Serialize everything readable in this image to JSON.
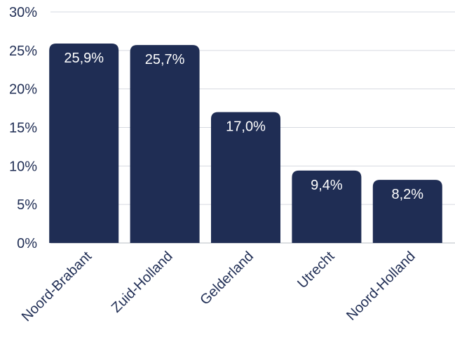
{
  "chart_data": {
    "type": "bar",
    "title": "",
    "xlabel": "",
    "ylabel": "",
    "categories": [
      "Noord-Brabant",
      "Zuid-Holland",
      "Gelderland",
      "Utrecht",
      "Noord-Holland"
    ],
    "values": [
      25.9,
      25.7,
      17.0,
      9.4,
      8.2
    ],
    "data_labels": [
      "25,9%",
      "25,7%",
      "17,0%",
      "9,4%",
      "8,2%"
    ],
    "ylim": [
      0,
      30
    ],
    "yticks": [
      0,
      5,
      10,
      15,
      20,
      25,
      30
    ],
    "ytick_labels": [
      "0%",
      "5%",
      "10%",
      "15%",
      "20%",
      "25%",
      "30%"
    ],
    "grid": true,
    "legend": "none",
    "colors": {
      "bar": "#1f2d54",
      "grid": "#d6d9e0",
      "text": "#1f2d54",
      "label": "#ffffff"
    }
  }
}
